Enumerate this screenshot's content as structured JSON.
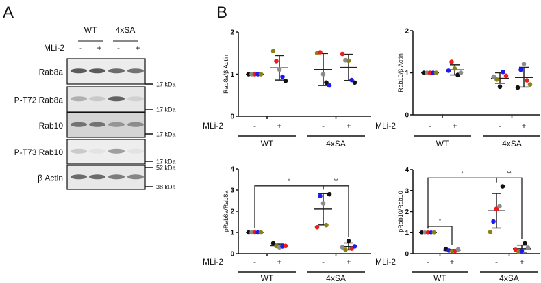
{
  "panel_a": {
    "label": "A",
    "groups": [
      "WT",
      "4xSA"
    ],
    "treatment_label": "MLi-2",
    "lane_signs": [
      "-",
      "+",
      "-",
      "+"
    ],
    "blots": [
      {
        "name": "Rab8a",
        "intensity": [
          0.85,
          0.85,
          0.75,
          0.7
        ],
        "markers": [
          "17 kDa"
        ]
      },
      {
        "name": "P-T72 Rab8a",
        "intensity": [
          0.35,
          0.2,
          0.8,
          0.15
        ],
        "markers": [
          "17 kDa"
        ]
      },
      {
        "name": "Rab10",
        "intensity": [
          0.7,
          0.7,
          0.5,
          0.55
        ],
        "markers": [
          "17 kDa"
        ]
      },
      {
        "name": "P-T73 Rab10",
        "intensity": [
          0.2,
          0.05,
          0.45,
          0.05
        ],
        "markers": [
          "17 kDa"
        ]
      },
      {
        "name": "β Actin",
        "intensity": [
          0.75,
          0.75,
          0.65,
          0.6
        ],
        "markers": [
          "52 kDa",
          "38 kDa"
        ]
      }
    ]
  },
  "panel_b": {
    "label": "B"
  },
  "chart_data": [
    {
      "type": "scatter",
      "ylabel": "Rab8a/β Actin",
      "ylim": [
        0,
        2
      ],
      "yticks": [
        "0",
        "1",
        "2"
      ],
      "treatment_label": "MLi-2",
      "signs": [
        "-",
        "+",
        "-",
        "+"
      ],
      "groups": [
        "WT",
        "4xSA"
      ],
      "colors": {
        "black": "#111111",
        "gray": "#8c8c8c",
        "red": "#ee1c1c",
        "blue": "#1c1cf0",
        "olive": "#8a8214"
      },
      "series": [
        {
          "name": "WT -",
          "points": {
            "black": 1,
            "gray": 1,
            "red": 1,
            "blue": 1,
            "olive": 1
          },
          "mean": 1,
          "err": [
            1,
            1
          ]
        },
        {
          "name": "WT +",
          "points": {
            "olive": 1.55,
            "red": 1.31,
            "gray": 1.11,
            "blue": 0.94,
            "black": 0.84
          },
          "mean": 1.15,
          "err": [
            0.86,
            1.44
          ]
        },
        {
          "name": "4xSA -",
          "points": {
            "olive": 1.5,
            "red": 1.52,
            "gray": 1.0,
            "black": 0.8,
            "blue": 0.73
          },
          "mean": 1.11,
          "err": [
            0.73,
            1.49
          ]
        },
        {
          "name": "4xSA +",
          "points": {
            "red": 1.48,
            "gray": 1.33,
            "olive": 1.32,
            "blue": 0.86,
            "black": 0.8
          },
          "mean": 1.16,
          "err": [
            0.85,
            1.47
          ]
        }
      ],
      "significance": []
    },
    {
      "type": "scatter",
      "ylabel": "Rab10/β Actin",
      "ylim": [
        0,
        2
      ],
      "yticks": [
        "0",
        "1",
        "2"
      ],
      "treatment_label": "MLi-2",
      "signs": [
        "-",
        "+",
        "-",
        "+"
      ],
      "groups": [
        "WT",
        "4xSA"
      ],
      "colors": {
        "black": "#111111",
        "gray": "#8c8c8c",
        "red": "#ee1c1c",
        "blue": "#1c1cf0",
        "olive": "#8a8214"
      },
      "series": [
        {
          "name": "WT -",
          "points": {
            "black": 1,
            "gray": 1,
            "red": 1,
            "blue": 1,
            "olive": 1
          },
          "mean": 1,
          "err": [
            1,
            1
          ]
        },
        {
          "name": "WT +",
          "points": {
            "blue": 1.05,
            "red": 1.26,
            "olive": 1.1,
            "black": 0.95,
            "gray": 1.0
          },
          "mean": 1.07,
          "err": [
            0.95,
            1.19
          ]
        },
        {
          "name": "4xSA -",
          "points": {
            "gray": 0.91,
            "olive": 0.84,
            "black": 0.67,
            "blue": 1.02,
            "red": 0.93
          },
          "mean": 0.87,
          "err": [
            0.75,
            1.0
          ]
        },
        {
          "name": "4xSA +",
          "points": {
            "black": 0.65,
            "blue": 1.07,
            "gray": 1.21,
            "red": 0.82,
            "olive": 0.72
          },
          "mean": 0.89,
          "err": [
            0.66,
            1.13
          ]
        }
      ],
      "significance": []
    },
    {
      "type": "scatter",
      "ylabel": "pRab8a/Rab8a",
      "ylim": [
        0,
        4
      ],
      "yticks": [
        "0",
        "1",
        "2",
        "3",
        "4"
      ],
      "treatment_label": "MLi-2",
      "signs": [
        "-",
        "+",
        "-",
        "+"
      ],
      "groups": [
        "WT",
        "4xSA"
      ],
      "colors": {
        "black": "#111111",
        "gray": "#8c8c8c",
        "red": "#ee1c1c",
        "blue": "#1c1cf0",
        "olive": "#8a8214"
      },
      "series": [
        {
          "name": "WT -",
          "points": {
            "black": 1,
            "gray": 1,
            "red": 1,
            "blue": 1,
            "olive": 1
          },
          "mean": 1,
          "err": [
            1,
            1
          ]
        },
        {
          "name": "WT +",
          "points": {
            "black": 0.49,
            "olive": 0.36,
            "gray": 0.3,
            "blue": 0.34,
            "red": 0.36
          },
          "mean": 0.37,
          "err": [
            0.33,
            0.45
          ]
        },
        {
          "name": "4xSA -",
          "points": {
            "red": 1.25,
            "blue": 2.72,
            "gray": 2.37,
            "olive": 1.35,
            "black": 2.8
          },
          "mean": 2.1,
          "err": [
            1.36,
            2.83
          ]
        },
        {
          "name": "4xSA +",
          "points": {
            "gray": 0.3,
            "olive": 0.18,
            "black": 0.6,
            "red": 0.24,
            "blue": 0.34
          },
          "mean": 0.33,
          "err": [
            0.18,
            0.5
          ]
        }
      ],
      "significance": [
        {
          "from": 0,
          "to": 2,
          "level": 3.2,
          "label": "*"
        },
        {
          "from": 2,
          "to": 3,
          "level": 3.2,
          "label": "**"
        }
      ]
    },
    {
      "type": "scatter",
      "ylabel": "pRab10/Rab10",
      "ylim": [
        0,
        4
      ],
      "yticks": [
        "0",
        "1",
        "2",
        "3",
        "4"
      ],
      "treatment_label": "MLi-2",
      "signs": [
        "-",
        "+",
        "-",
        "+"
      ],
      "groups": [
        "WT",
        "4xSA"
      ],
      "colors": {
        "black": "#111111",
        "gray": "#8c8c8c",
        "red": "#ee1c1c",
        "blue": "#1c1cf0",
        "olive": "#8a8214"
      },
      "series": [
        {
          "name": "WT -",
          "points": {
            "black": 1,
            "gray": 1,
            "red": 1,
            "blue": 1,
            "olive": 1
          },
          "mean": 1,
          "err": [
            1,
            1
          ]
        },
        {
          "name": "WT +",
          "points": {
            "black": 0.22,
            "blue": 0.15,
            "olive": 0.12,
            "red": 0.13,
            "gray": 0.2
          },
          "mean": 0.17,
          "err": [
            0.15,
            0.2
          ]
        },
        {
          "name": "4xSA -",
          "points": {
            "olive": 1.03,
            "blue": 1.53,
            "red": 2.13,
            "gray": 2.25,
            "black": 3.2
          },
          "mean": 2.04,
          "err": [
            1.22,
            2.86
          ]
        },
        {
          "name": "4xSA +",
          "points": {
            "red": 0.18,
            "olive": 0.08,
            "blue": 0.13,
            "black": 0.49,
            "gray": 0.28
          },
          "mean": 0.23,
          "err": [
            0.07,
            0.4
          ]
        }
      ],
      "significance": [
        {
          "from": 0,
          "to": 1,
          "level": 1.3,
          "label": "*"
        },
        {
          "from": 0,
          "to": 2,
          "level": 3.6,
          "label": "*"
        },
        {
          "from": 2,
          "to": 3,
          "level": 3.6,
          "label": "**"
        }
      ]
    }
  ]
}
